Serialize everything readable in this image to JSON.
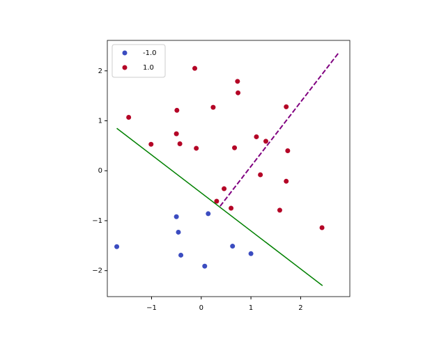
{
  "chart_data": {
    "type": "scatter",
    "xlim": [
      -1.89,
      2.99
    ],
    "ylim": [
      -2.52,
      2.61
    ],
    "xticks": [
      {
        "value": -1,
        "label": "−1"
      },
      0,
      1,
      2
    ],
    "yticks": [
      {
        "value": -2,
        "label": "−2"
      },
      {
        "value": -1,
        "label": "−1"
      },
      0,
      1,
      2
    ],
    "legend": "upper left",
    "series": [
      {
        "name": "-1.0",
        "color": "#3b4cc0",
        "x": [
          -1.7,
          -0.5,
          -0.46,
          -0.41,
          0.14,
          0.07,
          0.63,
          1.0
        ],
        "values": [
          -1.52,
          -0.92,
          -1.23,
          -1.69,
          -0.86,
          -1.91,
          -1.51,
          -1.66
        ]
      },
      {
        "name": "1.0",
        "color": "#b40426",
        "x": [
          -1.46,
          -1.01,
          -0.5,
          -0.49,
          -0.43,
          -0.13,
          -0.1,
          0.24,
          0.73,
          0.74,
          0.67,
          0.46,
          0.31,
          0.6,
          1.11,
          1.3,
          1.19,
          1.71,
          1.74,
          1.71,
          1.58,
          2.43
        ],
        "values": [
          1.07,
          0.53,
          0.74,
          1.21,
          0.54,
          2.05,
          0.45,
          1.27,
          1.79,
          1.56,
          0.46,
          -0.36,
          -0.61,
          -0.75,
          0.68,
          0.59,
          -0.08,
          1.28,
          0.4,
          -0.21,
          -0.79,
          -1.14
        ]
      }
    ],
    "lines": [
      {
        "color": "#008000",
        "style": "solid",
        "x": [
          -1.7,
          2.44
        ],
        "values": [
          0.85,
          -2.3
        ]
      },
      {
        "color": "#800080",
        "style": "dashed",
        "x": [
          0.38,
          2.78
        ],
        "values": [
          -0.71,
          2.38
        ]
      }
    ]
  }
}
